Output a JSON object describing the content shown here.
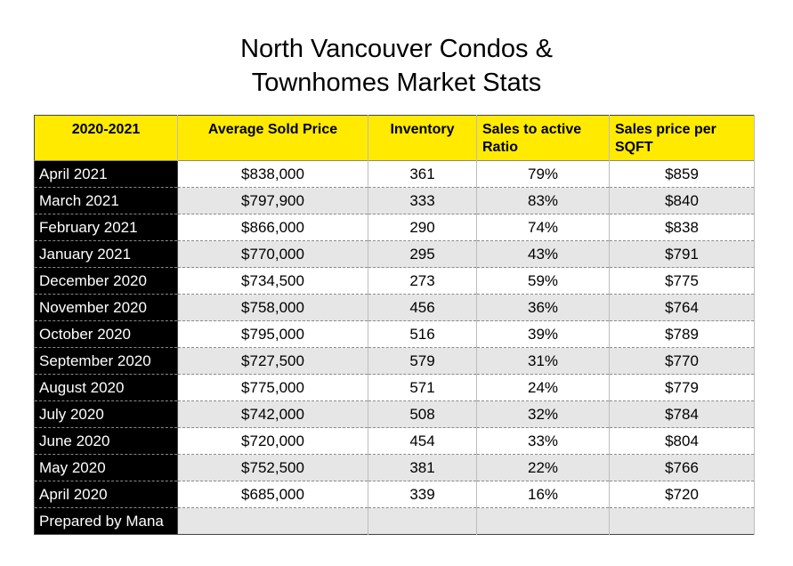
{
  "title": {
    "line1": "North Vancouver Condos &",
    "line2": "Townhomes Market Stats"
  },
  "table": {
    "headers": [
      "2020-2021",
      "Average Sold Price",
      "Inventory",
      "Sales to active Ratio",
      "Sales price per SQFT"
    ],
    "rows": [
      [
        "April 2021",
        "$838,000",
        "361",
        "79%",
        "$859"
      ],
      [
        "March 2021",
        "$797,900",
        "333",
        "83%",
        "$840"
      ],
      [
        "February 2021",
        "$866,000",
        "290",
        "74%",
        "$838"
      ],
      [
        "January 2021",
        "$770,000",
        "295",
        "43%",
        "$791"
      ],
      [
        "December 2020",
        "$734,500",
        "273",
        "59%",
        "$775"
      ],
      [
        "November 2020",
        "$758,000",
        "456",
        "36%",
        "$764"
      ],
      [
        "October 2020",
        "$795,000",
        "516",
        "39%",
        "$789"
      ],
      [
        "September 2020",
        "$727,500",
        "579",
        "31%",
        "$770"
      ],
      [
        "August 2020",
        "$775,000",
        "571",
        "24%",
        "$779"
      ],
      [
        "July 2020",
        "$742,000",
        "508",
        "32%",
        "$784"
      ],
      [
        "June 2020",
        "$720,000",
        "454",
        "33%",
        "$804"
      ],
      [
        "May 2020",
        "$752,500",
        "381",
        "22%",
        "$766"
      ],
      [
        "April 2020",
        "$685,000",
        "339",
        "16%",
        "$720"
      ]
    ],
    "footer": "Prepared by Mana"
  },
  "colors": {
    "header_bg": "#ffea00",
    "month_bg": "#000000",
    "alt_row_bg": "#e6e6e6"
  }
}
